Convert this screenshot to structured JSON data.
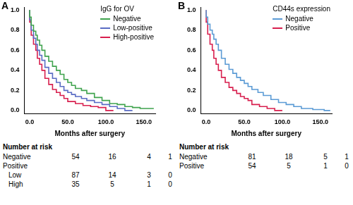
{
  "chart_data": [
    {
      "type": "line",
      "line_style": "step",
      "panel_label": "A",
      "xlabel": "Months after surgery",
      "legend": "upper right",
      "legend_title": "IgG for OV",
      "grid": false,
      "xlim": [
        -7,
        165
      ],
      "xticks": [
        {
          "value": 0,
          "label": "0.0"
        },
        {
          "value": 50,
          "label": "50.0"
        },
        {
          "value": 100,
          "label": "100.0"
        },
        {
          "value": 150,
          "label": "150.0"
        }
      ],
      "ylim": [
        -0.03,
        1.03
      ],
      "yticks": [
        {
          "value": 0,
          "label": "0.0"
        },
        {
          "value": 0.2,
          "label": "0.2"
        },
        {
          "value": 0.4,
          "label": "0.4"
        },
        {
          "value": 0.6,
          "label": "0.6"
        },
        {
          "value": 0.8,
          "label": "0.8"
        },
        {
          "value": 1,
          "label": "1.0"
        }
      ],
      "series": [
        {
          "name": "Negative",
          "color": "#3fa34d",
          "x": [
            0,
            2,
            5,
            8,
            10,
            13,
            16,
            20,
            25,
            30,
            35,
            40,
            45,
            50,
            55,
            60,
            68,
            75,
            85,
            95,
            105,
            115,
            125,
            135,
            145,
            163
          ],
          "values": [
            1,
            0.93,
            0.85,
            0.79,
            0.75,
            0.7,
            0.65,
            0.6,
            0.54,
            0.49,
            0.44,
            0.4,
            0.36,
            0.31,
            0.28,
            0.25,
            0.22,
            0.2,
            0.17,
            0.13,
            0.1,
            0.07,
            0.06,
            0.04,
            0.03,
            0.02
          ]
        },
        {
          "name": "Low-positive",
          "color": "#5a6cc4",
          "x": [
            0,
            2,
            5,
            8,
            10,
            13,
            16,
            20,
            25,
            30,
            35,
            40,
            45,
            50,
            55,
            60,
            68,
            75,
            85,
            95,
            105,
            115,
            125,
            135
          ],
          "values": [
            1,
            0.9,
            0.8,
            0.72,
            0.66,
            0.6,
            0.55,
            0.5,
            0.43,
            0.37,
            0.32,
            0.28,
            0.24,
            0.2,
            0.18,
            0.16,
            0.14,
            0.12,
            0.1,
            0.08,
            0.06,
            0.04,
            0.02,
            0
          ]
        },
        {
          "name": "High-positive",
          "color": "#d81f4e",
          "x": [
            0,
            2,
            5,
            8,
            10,
            13,
            16,
            20,
            25,
            30,
            35,
            40,
            45,
            50,
            60,
            70,
            80,
            90,
            100,
            110
          ],
          "values": [
            1,
            0.88,
            0.75,
            0.66,
            0.6,
            0.52,
            0.46,
            0.4,
            0.32,
            0.26,
            0.21,
            0.18,
            0.15,
            0.12,
            0.09,
            0.07,
            0.05,
            0.04,
            0.03,
            0
          ]
        }
      ],
      "risk_table": {
        "title": "Number at risk",
        "rows": [
          {
            "label": "Negative",
            "values": [
              54,
              16,
              4,
              1
            ]
          },
          {
            "group": "Positive",
            "rows": [
              {
                "label": "Low",
                "values": [
                  87,
                  14,
                  3,
                  0
                ]
              },
              {
                "label": "High",
                "values": [
                  35,
                  5,
                  1,
                  0
                ]
              }
            ]
          }
        ]
      }
    },
    {
      "type": "line",
      "line_style": "step",
      "panel_label": "B",
      "xlabel": "Months after surgery",
      "legend": "upper right",
      "legend_title": "CD44s expression",
      "grid": false,
      "xlim": [
        -7,
        165
      ],
      "xticks": [
        {
          "value": 0,
          "label": "0.0"
        },
        {
          "value": 50,
          "label": "50.0"
        },
        {
          "value": 100,
          "label": "100.0"
        },
        {
          "value": 150,
          "label": "150.0"
        }
      ],
      "ylim": [
        -0.03,
        1.03
      ],
      "yticks": [
        {
          "value": 0,
          "label": "0.0"
        },
        {
          "value": 0.2,
          "label": "0.2"
        },
        {
          "value": 0.4,
          "label": "0.4"
        },
        {
          "value": 0.6,
          "label": "0.6"
        },
        {
          "value": 0.8,
          "label": "0.8"
        },
        {
          "value": 1,
          "label": "1.0"
        }
      ],
      "series": [
        {
          "name": "Negative",
          "color": "#5b9bd5",
          "x": [
            0,
            2,
            5,
            8,
            10,
            13,
            16,
            20,
            25,
            30,
            35,
            40,
            45,
            50,
            55,
            60,
            68,
            75,
            85,
            95,
            105,
            115,
            125,
            140,
            155,
            163
          ],
          "values": [
            1,
            0.93,
            0.86,
            0.8,
            0.76,
            0.71,
            0.66,
            0.6,
            0.52,
            0.46,
            0.41,
            0.37,
            0.33,
            0.3,
            0.27,
            0.24,
            0.21,
            0.18,
            0.15,
            0.11,
            0.08,
            0.06,
            0.04,
            0.02,
            0.01,
            0
          ]
        },
        {
          "name": "Positive",
          "color": "#d81f4e",
          "x": [
            0,
            2,
            5,
            8,
            10,
            13,
            16,
            20,
            25,
            30,
            35,
            40,
            45,
            50,
            55,
            60,
            70,
            80,
            90,
            100
          ],
          "values": [
            1,
            0.88,
            0.76,
            0.66,
            0.6,
            0.52,
            0.46,
            0.4,
            0.33,
            0.28,
            0.23,
            0.2,
            0.17,
            0.14,
            0.12,
            0.1,
            0.06,
            0.04,
            0.02,
            0
          ]
        }
      ],
      "risk_table": {
        "title": "Number at risk",
        "rows": [
          {
            "label": "Negative",
            "values": [
              81,
              18,
              5,
              1
            ]
          },
          {
            "label": "Positive",
            "values": [
              54,
              5,
              1,
              0
            ]
          }
        ]
      }
    }
  ]
}
